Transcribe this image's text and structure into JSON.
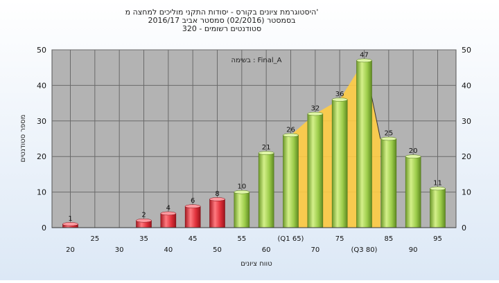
{
  "chart_data": {
    "type": "bar",
    "title_lines": [
      "היסטוגרמת ציונים בקורס - יסודות התקני מוליכים למחצה מ'",
      "בסמסטר (02/2016) סמסטר אביב 2016/17",
      "320 - סטודנטים רשומים"
    ],
    "annotation": "בשימה : Final_A",
    "xlabel": "טווח ציונים",
    "ylabel": "מספר סטודנטים",
    "ylim": [
      0,
      50
    ],
    "yticks": [
      0,
      10,
      20,
      30,
      40,
      50
    ],
    "x_tick_labels": [
      "20",
      "25",
      "30",
      "35",
      "40",
      "45",
      "50",
      "55",
      "60",
      "(Q1 65)",
      "70",
      "75",
      "(Q3 80)",
      "85",
      "90",
      "95"
    ],
    "categories": [
      20,
      25,
      30,
      35,
      40,
      45,
      50,
      55,
      60,
      65,
      70,
      75,
      80,
      85,
      90,
      95
    ],
    "values": [
      1,
      0,
      0,
      2,
      4,
      6,
      8,
      10,
      21,
      26,
      32,
      36,
      47,
      25,
      20,
      11
    ],
    "value_labels": [
      "1",
      "",
      "",
      "2",
      "4",
      "6",
      "8",
      "10",
      "21",
      "26",
      "32",
      "36",
      "47",
      "25",
      "20",
      "11"
    ],
    "fail_threshold": 55,
    "interquartile_band": {
      "from": 65,
      "to": 80
    },
    "grid": true,
    "colors": {
      "fail": "#e0303a",
      "pass": "#9ccc4a",
      "plot_bg": "#b3b3b3",
      "band": "#ffcc44",
      "grid": "#6a6a6a"
    }
  }
}
